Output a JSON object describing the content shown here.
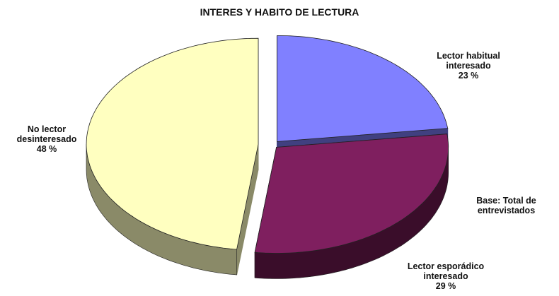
{
  "chart_data": {
    "type": "pie",
    "title": "INTERES Y HABITO DE LECTURA",
    "categories": [
      "Lector habitual interesado",
      "Lector esporádico interesado",
      "No lector desinteresado"
    ],
    "values": [
      23,
      29,
      48
    ],
    "value_labels": [
      "23 %",
      "29 %",
      "48 %"
    ],
    "colors": [
      "#8080ff",
      "#7f1f5f",
      "#ffffc0"
    ],
    "side_colors": [
      "#404080",
      "#3a0d2a",
      "#8a8a68"
    ],
    "annotation": "Base: Total de entrevistados"
  }
}
